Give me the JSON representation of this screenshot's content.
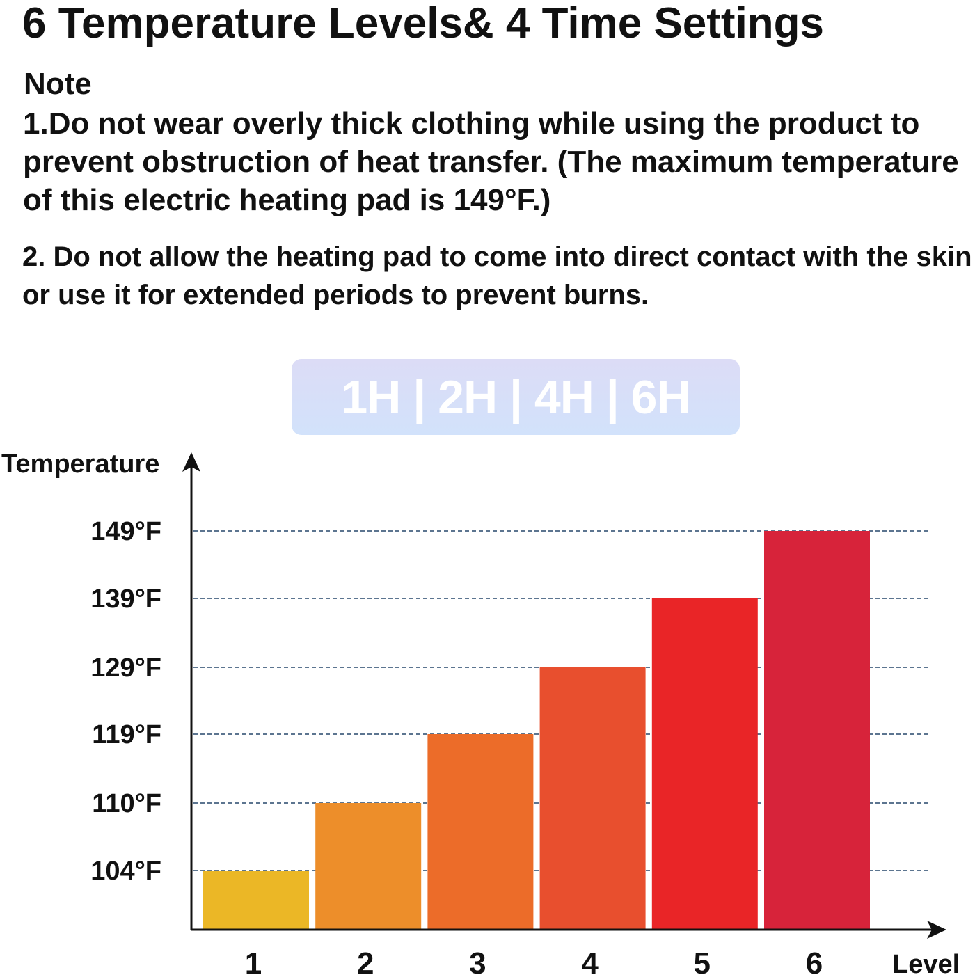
{
  "heading": {
    "title": "6 Temperature Levels& 4 Time Settings"
  },
  "note": {
    "heading": "Note",
    "item1": "1.Do not wear overly thick clothing while using the product to prevent obstruction of heat transfer. (The maximum temperature of this electric heating pad is 149°F.)",
    "item2": "2. Do not allow the heating pad to come into direct contact with the skin or use it for extended periods to prevent burns."
  },
  "time_settings": {
    "label": "1H | 2H | 4H | 6H"
  },
  "chart_data": {
    "type": "bar",
    "xlabel": "Level",
    "ylabel": "Temperature",
    "categories": [
      "1",
      "2",
      "3",
      "4",
      "5",
      "6"
    ],
    "values": [
      104,
      110,
      119,
      129,
      139,
      149
    ],
    "unit": "°F",
    "y_ticks": [
      104,
      110,
      119,
      129,
      139,
      149
    ],
    "y_tick_labels": [
      "104°F",
      "110°F",
      "119°F",
      "129°F",
      "139°F",
      "149°F"
    ],
    "grid": "dashed horizontal lines at tick values",
    "legend": "none",
    "bar_colors": [
      "#ebb726",
      "#ed8e2a",
      "#ec6c29",
      "#e84f2e",
      "#e92527",
      "#d7233a"
    ],
    "grid_color": "#5c7590"
  }
}
